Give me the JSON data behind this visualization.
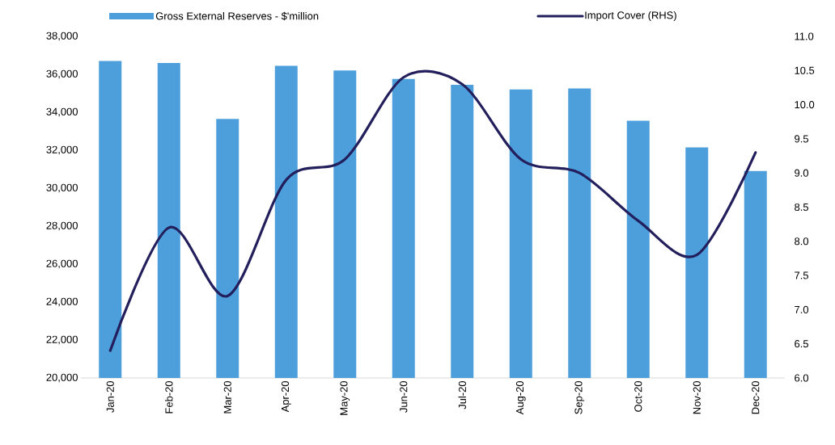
{
  "chart_data": {
    "type": "bar",
    "categories": [
      "Jan-20",
      "Feb-20",
      "Mar-20",
      "Apr-20",
      "May-20",
      "Jun-20",
      "Jul-20",
      "Aug-20",
      "Sep-20",
      "Oct-20",
      "Nov-20",
      "Dec-20"
    ],
    "series": [
      {
        "name": "Gross External Reserves - $'million",
        "color": "#4d9fdc",
        "values": [
          36700,
          36600,
          33650,
          36450,
          36200,
          35750,
          35450,
          35200,
          35250,
          33550,
          32150,
          30900
        ]
      },
      {
        "name": "Import Cover (RHS)",
        "type": "line",
        "axis": "y2",
        "color": "#231f5c",
        "values": [
          6.4,
          8.2,
          7.2,
          8.9,
          9.2,
          10.4,
          10.3,
          9.2,
          9.0,
          8.3,
          7.8,
          9.3
        ]
      }
    ],
    "ylim": [
      20000,
      38000
    ],
    "yticks": [
      {
        "value": 20000,
        "label": "20,000"
      },
      {
        "value": 22000,
        "label": "22,000"
      },
      {
        "value": 24000,
        "label": "24,000"
      },
      {
        "value": 26000,
        "label": "26,000"
      },
      {
        "value": 28000,
        "label": "28,000"
      },
      {
        "value": 30000,
        "label": "30,000"
      },
      {
        "value": 32000,
        "label": "32,000"
      },
      {
        "value": 34000,
        "label": "34,000"
      },
      {
        "value": 36000,
        "label": "36,000"
      },
      {
        "value": 38000,
        "label": "38,000"
      }
    ],
    "y2lim": [
      6.0,
      11.0
    ],
    "y2ticks": [
      {
        "value": 6.0,
        "label": "6.0"
      },
      {
        "value": 6.5,
        "label": "6.5"
      },
      {
        "value": 7.0,
        "label": "7.0"
      },
      {
        "value": 7.5,
        "label": "7.5"
      },
      {
        "value": 8.0,
        "label": "8.0"
      },
      {
        "value": 8.5,
        "label": "8.5"
      },
      {
        "value": 9.0,
        "label": "9.0"
      },
      {
        "value": 9.5,
        "label": "9.5"
      },
      {
        "value": 10.0,
        "label": "10.0"
      },
      {
        "value": 10.5,
        "label": "10.5"
      },
      {
        "value": 11.0,
        "label": "11.0"
      }
    ],
    "legend": "top",
    "grid": false
  }
}
